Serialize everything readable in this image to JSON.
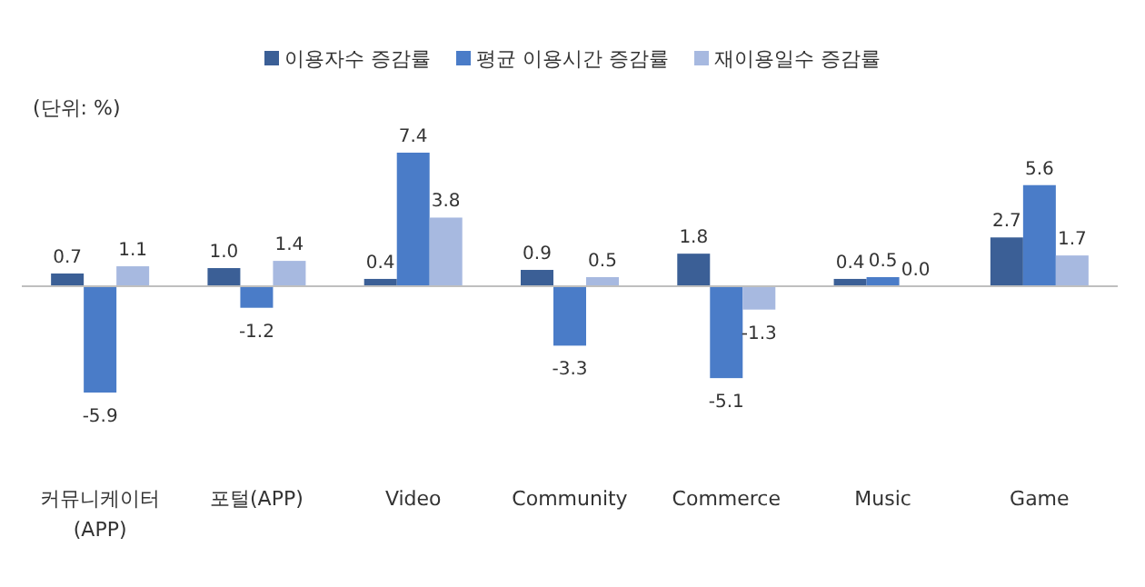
{
  "chart_data": {
    "type": "bar",
    "categories": [
      "커뮤니케이터 (APP)",
      "포털(APP)",
      "Video",
      "Community",
      "Commerce",
      "Music",
      "Game"
    ],
    "series": [
      {
        "name": "이용자수 증감률",
        "color": "#3b5f96",
        "values": [
          0.7,
          1.0,
          0.4,
          0.9,
          1.8,
          0.4,
          2.7
        ],
        "value_labels": [
          "0.7",
          "1.0",
          "0.4",
          "0.9",
          "1.8",
          "0.4",
          "2.7"
        ]
      },
      {
        "name": "평균 이용시간 증감률",
        "color": "#4a7cc8",
        "values": [
          -5.9,
          -1.2,
          7.4,
          -3.3,
          -5.1,
          0.5,
          5.6
        ],
        "value_labels": [
          "-5.9",
          "-1.2",
          "7.4",
          "-3.3",
          "-5.1",
          "0.5",
          "5.6"
        ]
      },
      {
        "name": "재이용일수 증감률",
        "color": "#a7b9e0",
        "values": [
          1.1,
          1.4,
          3.8,
          0.5,
          -1.3,
          0.0,
          1.7
        ],
        "value_labels": [
          "1.1",
          "1.4",
          "3.8",
          "0.5",
          "-1.3",
          "0.0",
          "1.7"
        ]
      }
    ],
    "legend": "top",
    "grid": false,
    "annotations": [
      "(단위: %)"
    ]
  }
}
